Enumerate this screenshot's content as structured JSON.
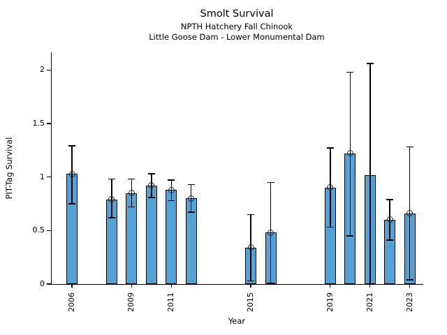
{
  "header": {
    "title": "Smolt Survival",
    "subtitle1": "NPTH Hatchery Fall Chinook",
    "subtitle2": "Little Goose Dam - Lower Monumental Dam"
  },
  "chart_data": {
    "type": "bar",
    "title": "Smolt Survival",
    "subtitles": [
      "NPTH Hatchery Fall Chinook",
      "Little Goose Dam - Lower Monumental Dam"
    ],
    "xlabel": "Year",
    "ylabel": "PIT-Tag Survival",
    "ylim": [
      0,
      2.16
    ],
    "yticks": [
      0,
      0.5,
      1,
      1.5,
      2
    ],
    "ytick_labels": [
      "0",
      "0.5",
      "1",
      "1.5",
      "2"
    ],
    "xticks_years": [
      2006,
      2009,
      2011,
      2015,
      2019,
      2021,
      2023
    ],
    "grid": false,
    "legend": "none",
    "bar_color": "#55a1d3",
    "bar_edge_color": "#000000",
    "error_bar_color": "#000000",
    "marker_style": "open-circle",
    "series": [
      {
        "year": 2006,
        "value": 1.03,
        "ci_low": 0.75,
        "ci_high": 1.29,
        "marker": true
      },
      {
        "year": 2008,
        "value": 0.79,
        "ci_low": 0.62,
        "ci_high": 0.98,
        "marker": true
      },
      {
        "year": 2009,
        "value": 0.85,
        "ci_low": 0.72,
        "ci_high": 0.98,
        "marker": true
      },
      {
        "year": 2010,
        "value": 0.92,
        "ci_low": 0.81,
        "ci_high": 1.03,
        "marker": true
      },
      {
        "year": 2011,
        "value": 0.88,
        "ci_low": 0.78,
        "ci_high": 0.97,
        "marker": true
      },
      {
        "year": 2012,
        "value": 0.8,
        "ci_low": 0.67,
        "ci_high": 0.93,
        "marker": true
      },
      {
        "year": 2015,
        "value": 0.34,
        "ci_low": 0.03,
        "ci_high": 0.65,
        "marker": true
      },
      {
        "year": 2016,
        "value": 0.48,
        "ci_low": 0.01,
        "ci_high": 0.95,
        "marker": true
      },
      {
        "year": 2019,
        "value": 0.9,
        "ci_low": 0.53,
        "ci_high": 1.27,
        "marker": true
      },
      {
        "year": 2020,
        "value": 1.22,
        "ci_low": 0.45,
        "ci_high": 1.98,
        "marker": true
      },
      {
        "year": 2021,
        "value": 1.02,
        "ci_low": 0.0,
        "ci_high": 2.06,
        "marker": false
      },
      {
        "year": 2022,
        "value": 0.6,
        "ci_low": 0.41,
        "ci_high": 0.79,
        "marker": true
      },
      {
        "year": 2023,
        "value": 0.66,
        "ci_low": 0.04,
        "ci_high": 1.28,
        "marker": true
      }
    ]
  }
}
